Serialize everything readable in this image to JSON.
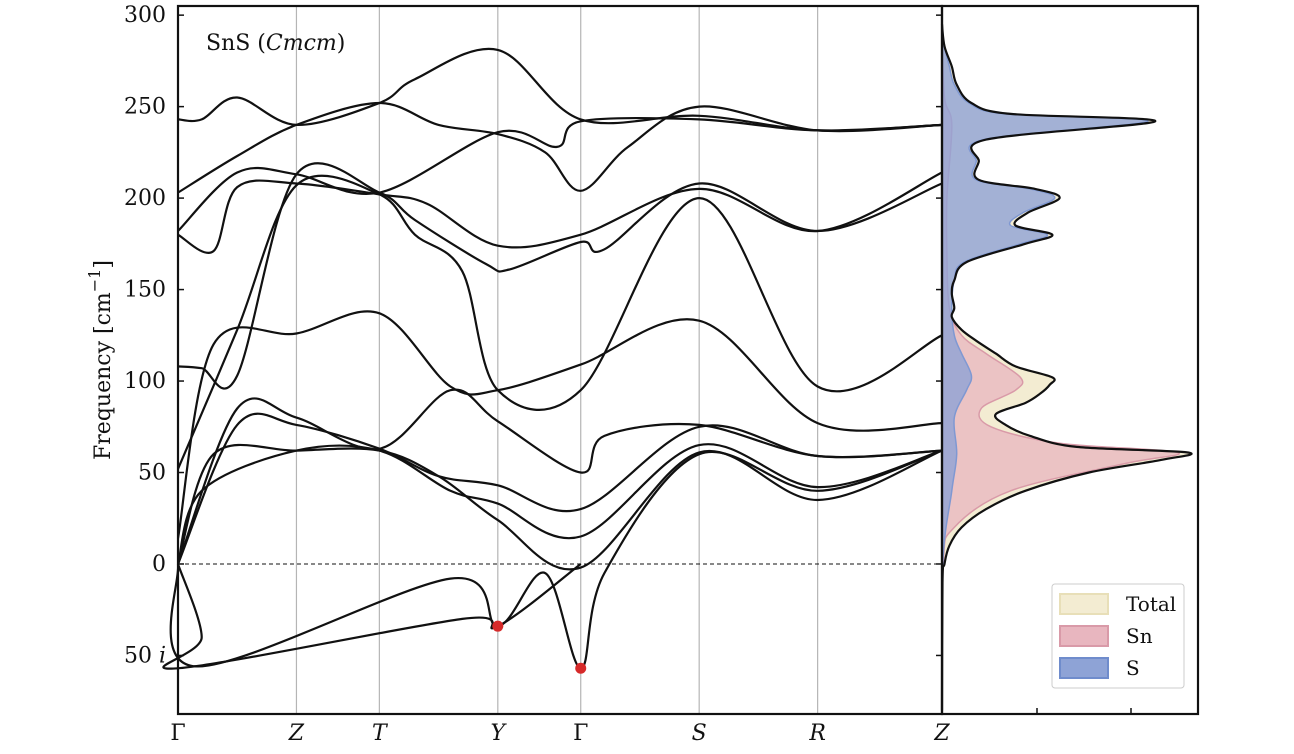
{
  "chart_data": {
    "type": "line",
    "title": "SnS (Cmcm)",
    "title_parts": [
      {
        "text": "SnS (",
        "italic": false
      },
      {
        "text": "Cmcm",
        "italic": true
      },
      {
        "text": ")",
        "italic": false
      }
    ],
    "ylabel": "Frequency [cm",
    "ylabel_sup": "−1",
    "ylabel_end": "]",
    "ylim": [
      -82,
      305
    ],
    "y_ticks": [
      {
        "value": 300,
        "label": "300"
      },
      {
        "value": 250,
        "label": "250"
      },
      {
        "value": 200,
        "label": "200"
      },
      {
        "value": 150,
        "label": "150"
      },
      {
        "value": 100,
        "label": "100"
      },
      {
        "value": 50,
        "label": "50"
      },
      {
        "value": 0,
        "label": "0"
      },
      {
        "value": -50,
        "label": "50",
        "suffix": "i"
      }
    ],
    "x_labels": [
      {
        "pos": 0,
        "label": "Γ",
        "italic": false
      },
      {
        "pos": 1,
        "label": "Z",
        "italic": true
      },
      {
        "pos": 1.7,
        "label": "T",
        "italic": true
      },
      {
        "pos": 2.7,
        "label": "Y",
        "italic": true
      },
      {
        "pos": 3.4,
        "label": "Γ",
        "italic": false
      },
      {
        "pos": 4.4,
        "label": "S",
        "italic": true
      },
      {
        "pos": 5.4,
        "label": "R",
        "italic": true
      },
      {
        "pos": 6.45,
        "label": "Z",
        "italic": true
      }
    ],
    "x_range": [
      0,
      6.45
    ],
    "grid": "vertical lines at high-symmetry points",
    "zero_line": "dashed",
    "bands": [
      [
        [
          0,
          243
        ],
        [
          0.2,
          243
        ],
        [
          0.5,
          255
        ],
        [
          1,
          240
        ],
        [
          1.7,
          252
        ],
        [
          2,
          265
        ],
        [
          2.7,
          281
        ],
        [
          3.4,
          243
        ],
        [
          4.4,
          245
        ],
        [
          5.4,
          237
        ],
        [
          6.45,
          240
        ]
      ],
      [
        [
          0,
          203
        ],
        [
          0.5,
          223
        ],
        [
          1,
          240
        ],
        [
          1.7,
          252
        ],
        [
          2.2,
          240
        ],
        [
          2.7,
          235
        ],
        [
          3.1,
          225
        ],
        [
          3.4,
          204
        ],
        [
          3.8,
          228
        ],
        [
          4.4,
          250
        ],
        [
          5.4,
          237
        ],
        [
          6.45,
          240
        ]
      ],
      [
        [
          0,
          182
        ],
        [
          0.5,
          214
        ],
        [
          1,
          213
        ],
        [
          1.7,
          203
        ],
        [
          2.7,
          236
        ],
        [
          3.2,
          228
        ],
        [
          3.4,
          242
        ],
        [
          4.4,
          243
        ],
        [
          5.4,
          237
        ],
        [
          6.45,
          240
        ]
      ],
      [
        [
          0,
          180
        ],
        [
          0.3,
          171
        ],
        [
          0.5,
          206
        ],
        [
          1,
          208
        ],
        [
          1.7,
          202
        ],
        [
          2.1,
          197
        ],
        [
          2.7,
          174
        ],
        [
          3.4,
          180
        ],
        [
          4.4,
          205
        ],
        [
          5.4,
          182
        ],
        [
          6.45,
          214
        ]
      ],
      [
        [
          0,
          108
        ],
        [
          0.2,
          107
        ],
        [
          0.5,
          103
        ],
        [
          1,
          213
        ],
        [
          1.7,
          203
        ],
        [
          2,
          188
        ],
        [
          2.6,
          164
        ],
        [
          2.8,
          161
        ],
        [
          3.4,
          176
        ],
        [
          3.6,
          172
        ],
        [
          4.4,
          208
        ],
        [
          5.4,
          182
        ],
        [
          6.45,
          208
        ]
      ],
      [
        [
          0,
          52
        ],
        [
          0.5,
          128
        ],
        [
          1,
          207
        ],
        [
          1.7,
          202
        ],
        [
          2,
          180
        ],
        [
          2.4,
          160
        ],
        [
          2.7,
          95
        ],
        [
          3.4,
          95
        ],
        [
          4.4,
          200
        ],
        [
          5.4,
          97
        ],
        [
          6.45,
          125
        ]
      ],
      [
        [
          0,
          14
        ],
        [
          0.3,
          120
        ],
        [
          1,
          126
        ],
        [
          1.7,
          137
        ],
        [
          2.3,
          97
        ],
        [
          2.7,
          95
        ],
        [
          3.4,
          109
        ],
        [
          4.4,
          133
        ],
        [
          5.4,
          77
        ],
        [
          6.45,
          77
        ]
      ],
      [
        [
          0,
          0
        ],
        [
          0.5,
          85
        ],
        [
          1,
          80
        ],
        [
          1.7,
          63
        ],
        [
          2.3,
          95
        ],
        [
          2.7,
          78
        ],
        [
          3.4,
          50
        ],
        [
          3.6,
          70
        ],
        [
          4.4,
          76
        ],
        [
          5.4,
          59
        ],
        [
          6.45,
          62
        ]
      ],
      [
        [
          0,
          0
        ],
        [
          0.5,
          76
        ],
        [
          1,
          76
        ],
        [
          1.7,
          63
        ],
        [
          2.2,
          48
        ],
        [
          2.7,
          43
        ],
        [
          3.4,
          30
        ],
        [
          4.4,
          75
        ],
        [
          5.4,
          59
        ],
        [
          6.45,
          62
        ]
      ],
      [
        [
          0,
          0
        ],
        [
          0.3,
          60
        ],
        [
          1,
          62
        ],
        [
          1.7,
          62
        ],
        [
          2.2,
          48
        ],
        [
          2.7,
          24
        ],
        [
          3.4,
          -2
        ],
        [
          4.4,
          61
        ],
        [
          5.4,
          35
        ],
        [
          6.45,
          62
        ]
      ],
      [
        [
          0,
          0
        ],
        [
          0.2,
          40
        ],
        [
          1,
          62
        ],
        [
          1.7,
          62
        ],
        [
          2.3,
          40
        ],
        [
          2.7,
          33
        ],
        [
          3.4,
          15
        ],
        [
          4.4,
          65
        ],
        [
          5.4,
          42
        ],
        [
          6.45,
          62
        ]
      ],
      [
        [
          0,
          0
        ],
        [
          0.2,
          -40
        ],
        [
          0,
          -57
        ],
        [
          2.4,
          -30
        ],
        [
          2.7,
          -34
        ],
        [
          3.4,
          0
        ]
      ],
      [
        [
          0,
          0
        ],
        [
          0.15,
          -56
        ],
        [
          2.3,
          -8
        ],
        [
          2.7,
          -34
        ],
        [
          3.1,
          -5
        ],
        [
          3.4,
          -57
        ],
        [
          3.6,
          -5
        ],
        [
          4.4,
          60
        ],
        [
          5.4,
          40
        ],
        [
          6.45,
          62
        ]
      ]
    ],
    "imaginary_minima": [
      {
        "label": "Y",
        "x": 2.7,
        "y": -34
      },
      {
        "label": "Γ",
        "x": 3.4,
        "y": -57
      }
    ],
    "dos_panel": {
      "legend": [
        {
          "name": "Total",
          "color": "#f3ecd2"
        },
        {
          "name": "Sn",
          "color": "#e8b6bf"
        },
        {
          "name": "S",
          "color": "#8ea3d6"
        }
      ],
      "legend_position": "bottom-right",
      "total_dos": [
        [
          -80,
          0
        ],
        [
          -10,
          0.002
        ],
        [
          0,
          0.01
        ],
        [
          10,
          0.03
        ],
        [
          20,
          0.08
        ],
        [
          30,
          0.18
        ],
        [
          40,
          0.34
        ],
        [
          50,
          0.6
        ],
        [
          57,
          0.9
        ],
        [
          61,
          1.0
        ],
        [
          64,
          0.55
        ],
        [
          70,
          0.36
        ],
        [
          76,
          0.26
        ],
        [
          82,
          0.22
        ],
        [
          88,
          0.34
        ],
        [
          93,
          0.4
        ],
        [
          98,
          0.44
        ],
        [
          102,
          0.45
        ],
        [
          108,
          0.3
        ],
        [
          115,
          0.22
        ],
        [
          122,
          0.14
        ],
        [
          128,
          0.08
        ],
        [
          135,
          0.04
        ],
        [
          140,
          0.05
        ],
        [
          148,
          0.04
        ],
        [
          155,
          0.05
        ],
        [
          165,
          0.1
        ],
        [
          175,
          0.34
        ],
        [
          180,
          0.45
        ],
        [
          185,
          0.3
        ],
        [
          192,
          0.35
        ],
        [
          200,
          0.48
        ],
        [
          205,
          0.38
        ],
        [
          210,
          0.15
        ],
        [
          220,
          0.15
        ],
        [
          232,
          0.18
        ],
        [
          242,
          0.87
        ],
        [
          246,
          0.28
        ],
        [
          252,
          0.12
        ],
        [
          262,
          0.06
        ],
        [
          272,
          0.04
        ],
        [
          283,
          0.01
        ],
        [
          295,
          0
        ]
      ],
      "sn_pdos": [
        [
          -80,
          0
        ],
        [
          0,
          0.005
        ],
        [
          20,
          0.05
        ],
        [
          40,
          0.28
        ],
        [
          55,
          0.75
        ],
        [
          61,
          0.96
        ],
        [
          66,
          0.48
        ],
        [
          75,
          0.2
        ],
        [
          85,
          0.16
        ],
        [
          95,
          0.3
        ],
        [
          102,
          0.32
        ],
        [
          115,
          0.18
        ],
        [
          125,
          0.08
        ],
        [
          140,
          0.03
        ],
        [
          170,
          0.02
        ],
        [
          200,
          0.02
        ],
        [
          240,
          0.04
        ],
        [
          255,
          0.01
        ],
        [
          290,
          0
        ]
      ],
      "s_pdos": [
        [
          -80,
          0
        ],
        [
          0,
          0.003
        ],
        [
          40,
          0.04
        ],
        [
          60,
          0.06
        ],
        [
          80,
          0.05
        ],
        [
          95,
          0.1
        ],
        [
          103,
          0.12
        ],
        [
          115,
          0.08
        ],
        [
          125,
          0.05
        ],
        [
          140,
          0.04
        ],
        [
          155,
          0.05
        ],
        [
          165,
          0.09
        ],
        [
          175,
          0.32
        ],
        [
          180,
          0.43
        ],
        [
          185,
          0.28
        ],
        [
          192,
          0.33
        ],
        [
          200,
          0.46
        ],
        [
          205,
          0.36
        ],
        [
          210,
          0.14
        ],
        [
          220,
          0.14
        ],
        [
          232,
          0.17
        ],
        [
          242,
          0.84
        ],
        [
          246,
          0.26
        ],
        [
          252,
          0.11
        ],
        [
          262,
          0.05
        ],
        [
          272,
          0.03
        ],
        [
          283,
          0.01
        ],
        [
          295,
          0
        ]
      ]
    }
  }
}
